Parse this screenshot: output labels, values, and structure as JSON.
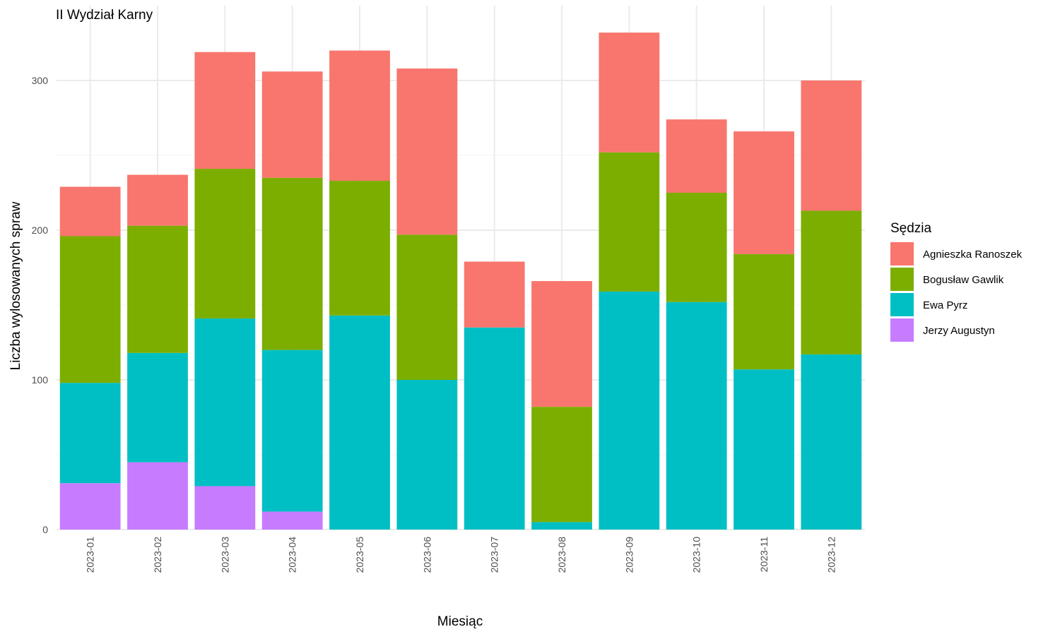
{
  "chart_data": {
    "type": "bar",
    "stacked": true,
    "title": "II Wydział Karny",
    "xlabel": "Miesiąc",
    "ylabel": "Liczba wylosowanych spraw",
    "ylim": [
      0,
      335
    ],
    "yticks": [
      0,
      100,
      200,
      300
    ],
    "grid": true,
    "legend_position": "right",
    "legend_title": "Sędzia",
    "categories": [
      "2023-01",
      "2023-02",
      "2023-03",
      "2023-04",
      "2023-05",
      "2023-06",
      "2023-07",
      "2023-08",
      "2023-09",
      "2023-10",
      "2023-11",
      "2023-12"
    ],
    "series": [
      {
        "name": "Jerzy Augustyn",
        "color": "#C77CFF",
        "values": [
          31,
          45,
          29,
          12,
          0,
          0,
          0,
          0,
          0,
          0,
          0,
          0
        ]
      },
      {
        "name": "Ewa Pyrz",
        "color": "#00BFC4",
        "values": [
          67,
          73,
          112,
          108,
          143,
          100,
          135,
          5,
          159,
          152,
          107,
          117
        ]
      },
      {
        "name": "Bogusław Gawlik",
        "color": "#7CAE00",
        "values": [
          98,
          85,
          100,
          115,
          90,
          97,
          0,
          77,
          93,
          73,
          77,
          96
        ]
      },
      {
        "name": "Agnieszka Ranoszek",
        "color": "#F8766D",
        "values": [
          33,
          34,
          78,
          71,
          87,
          111,
          44,
          84,
          80,
          49,
          82,
          87
        ]
      }
    ],
    "legend_order": [
      "Agnieszka Ranoszek",
      "Bogusław Gawlik",
      "Ewa Pyrz",
      "Jerzy Augustyn"
    ]
  }
}
